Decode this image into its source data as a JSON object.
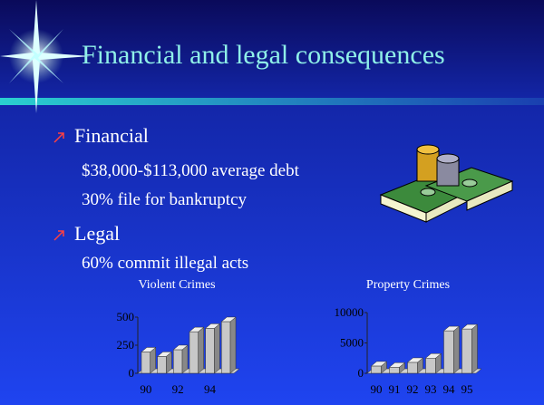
{
  "slide": {
    "title": "Financial and legal consequences",
    "bullets": [
      {
        "text": "Financial",
        "items": [
          "$38,000-$113,000 average debt",
          "30% file for bankruptcy"
        ]
      },
      {
        "text": "Legal",
        "items": [
          "60% commit illegal acts"
        ]
      }
    ]
  },
  "chart_data": [
    {
      "type": "bar",
      "title": "Violent Crimes",
      "categories": [
        "90",
        null,
        "92",
        null,
        "94",
        null
      ],
      "values": [
        190,
        150,
        210,
        370,
        400,
        460
      ],
      "color": "#c8c8c8",
      "ylim": [
        0,
        500
      ],
      "yticks": [
        0,
        250,
        500
      ]
    },
    {
      "type": "bar",
      "title": "Property Crimes",
      "categories": [
        "90",
        "91",
        "92",
        "93",
        "94",
        "95"
      ],
      "values": [
        1200,
        1000,
        1800,
        2500,
        7000,
        7300
      ],
      "color": "#c8c8c8",
      "ylim": [
        0,
        10000
      ],
      "yticks": [
        0,
        5000,
        10000
      ]
    }
  ]
}
